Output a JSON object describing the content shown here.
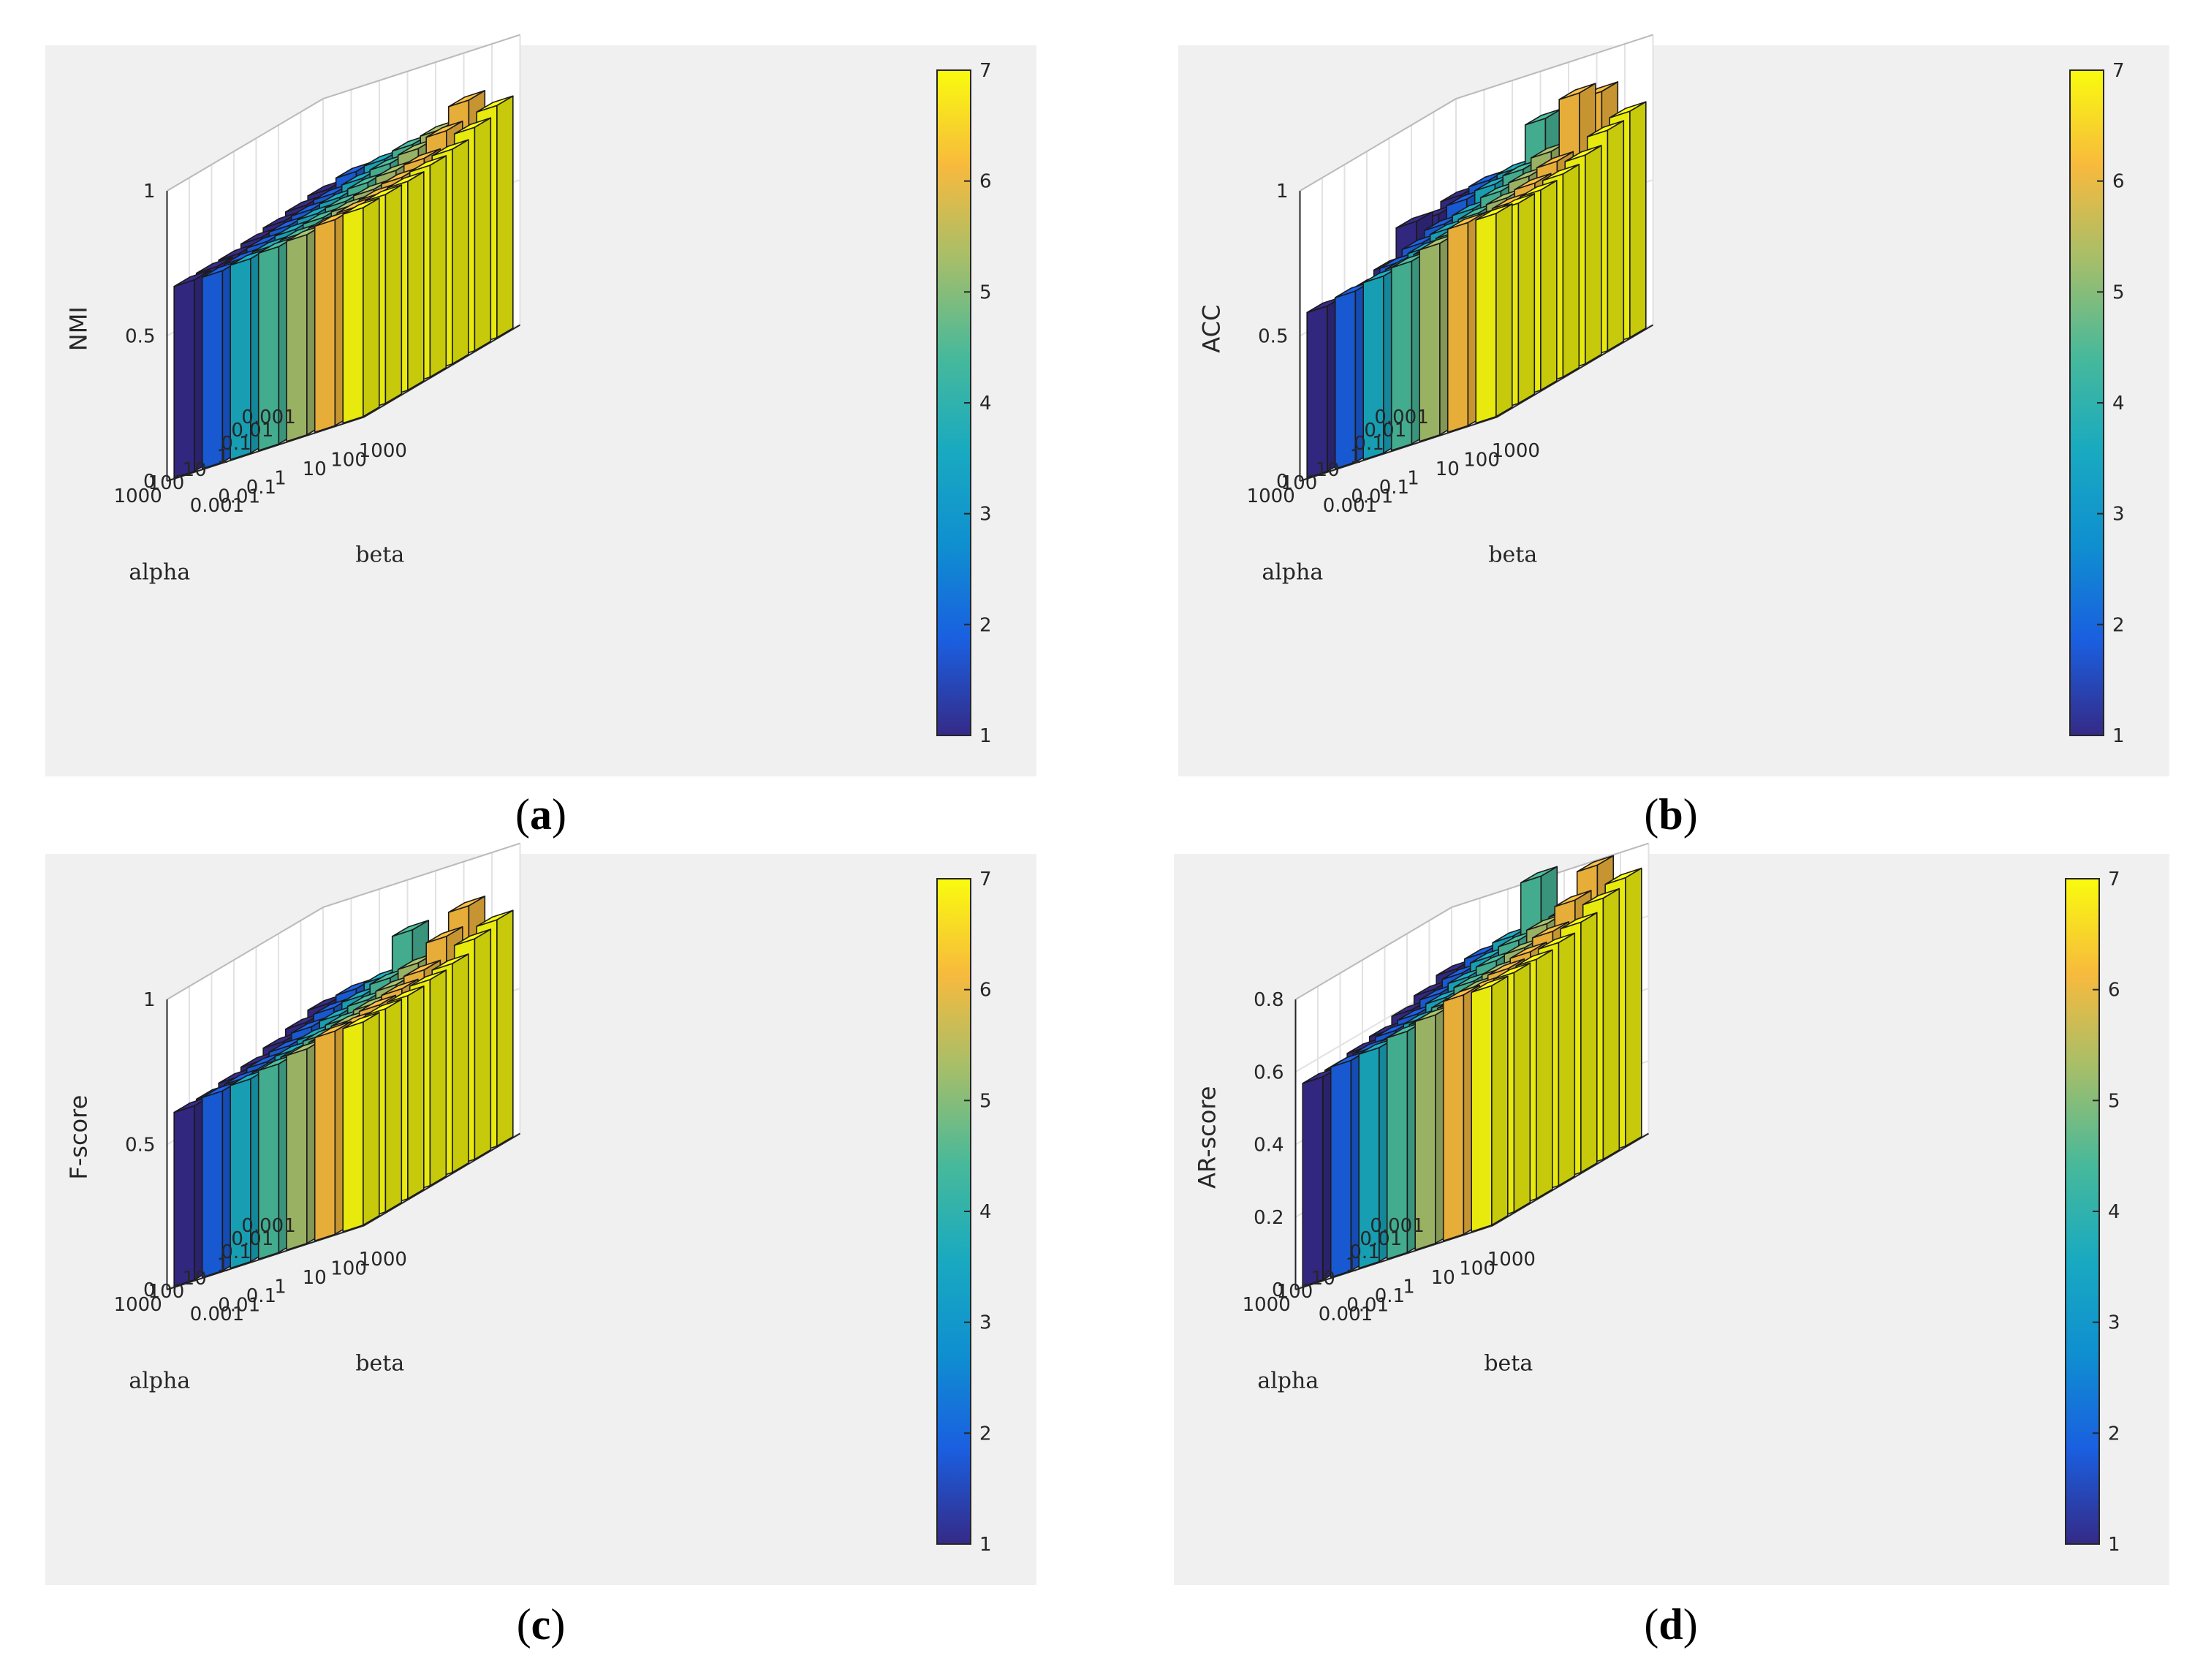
{
  "colormap": {
    "name": "parula",
    "stops": [
      "#352a87",
      "#1a5fe0",
      "#0f8fd0",
      "#19aac0",
      "#48b99a",
      "#a5be6a",
      "#f8ba3d",
      "#f9fb0e"
    ]
  },
  "chart_data": [
    {
      "type": "bar3",
      "panel": "a",
      "caption": "a",
      "zlabel": "NMI",
      "xlabel": "alpha",
      "ylabel": "beta",
      "alpha_ticks": [
        "0.001",
        "0.01",
        "0.1",
        "1",
        "10",
        "100",
        "1000"
      ],
      "beta_ticks": [
        "0.001",
        "0.01",
        "0.1",
        "1",
        "10",
        "100",
        "1000"
      ],
      "zticks": [
        "0",
        "0.5",
        "1"
      ],
      "zlim": [
        0,
        1
      ],
      "colorbar": {
        "ticks": [
          "1",
          "2",
          "3",
          "4",
          "5",
          "6",
          "7"
        ],
        "range": [
          1,
          7
        ]
      },
      "values": [
        [
          0.7,
          0.73,
          0.74,
          0.76,
          0.78,
          0.85,
          0.8
        ],
        [
          0.69,
          0.7,
          0.72,
          0.74,
          0.76,
          0.79,
          0.77
        ],
        [
          0.68,
          0.69,
          0.7,
          0.72,
          0.73,
          0.74,
          0.74
        ],
        [
          0.67,
          0.68,
          0.69,
          0.7,
          0.71,
          0.72,
          0.73
        ],
        [
          0.66,
          0.67,
          0.68,
          0.69,
          0.7,
          0.71,
          0.72
        ],
        [
          0.66,
          0.66,
          0.67,
          0.68,
          0.69,
          0.71,
          0.72
        ],
        [
          0.66,
          0.66,
          0.67,
          0.68,
          0.69,
          0.71,
          0.72
        ]
      ]
    },
    {
      "type": "bar3",
      "panel": "b",
      "caption": "b",
      "zlabel": "ACC",
      "xlabel": "alpha",
      "ylabel": "beta",
      "alpha_ticks": [
        "0.001",
        "0.01",
        "0.1",
        "1",
        "10",
        "100",
        "1000"
      ],
      "beta_ticks": [
        "0.001",
        "0.01",
        "0.1",
        "1",
        "10",
        "100",
        "1000"
      ],
      "zticks": [
        "0",
        "0.5",
        "1"
      ],
      "zlim": [
        0,
        1
      ],
      "colorbar": {
        "ticks": [
          "1",
          "2",
          "3",
          "4",
          "5",
          "6",
          "7"
        ],
        "range": [
          1,
          7
        ]
      },
      "values": [
        [
          0.68,
          0.7,
          0.71,
          0.85,
          0.74,
          0.88,
          0.78
        ],
        [
          0.66,
          0.68,
          0.7,
          0.72,
          0.75,
          0.92,
          0.76
        ],
        [
          0.68,
          0.64,
          0.66,
          0.69,
          0.71,
          0.73,
          0.72
        ],
        [
          0.58,
          0.62,
          0.64,
          0.66,
          0.68,
          0.7,
          0.7
        ],
        [
          0.56,
          0.6,
          0.62,
          0.64,
          0.66,
          0.68,
          0.69
        ],
        [
          0.56,
          0.58,
          0.61,
          0.63,
          0.65,
          0.68,
          0.69
        ],
        [
          0.57,
          0.59,
          0.61,
          0.63,
          0.66,
          0.7,
          0.7
        ]
      ]
    },
    {
      "type": "bar3",
      "panel": "c",
      "caption": "c",
      "zlabel": "F-score",
      "xlabel": "alpha",
      "ylabel": "beta",
      "alpha_ticks": [
        "0.001",
        "0.01",
        "0.1",
        "1",
        "10",
        "100",
        "1000"
      ],
      "beta_ticks": [
        "0.001",
        "0.01",
        "0.1",
        "1",
        "10",
        "100",
        "1000"
      ],
      "zticks": [
        "0",
        "0.5",
        "1"
      ],
      "zlim": [
        0,
        1
      ],
      "colorbar": {
        "ticks": [
          "1",
          "2",
          "3",
          "4",
          "5",
          "6",
          "7"
        ],
        "range": [
          1,
          7
        ]
      },
      "values": [
        [
          0.68,
          0.7,
          0.71,
          0.84,
          0.73,
          0.86,
          0.78
        ],
        [
          0.66,
          0.68,
          0.69,
          0.72,
          0.74,
          0.8,
          0.76
        ],
        [
          0.64,
          0.66,
          0.67,
          0.69,
          0.71,
          0.73,
          0.72
        ],
        [
          0.62,
          0.64,
          0.65,
          0.67,
          0.69,
          0.71,
          0.71
        ],
        [
          0.61,
          0.63,
          0.64,
          0.66,
          0.68,
          0.7,
          0.7
        ],
        [
          0.6,
          0.62,
          0.63,
          0.65,
          0.67,
          0.69,
          0.7
        ],
        [
          0.6,
          0.62,
          0.63,
          0.65,
          0.67,
          0.7,
          0.7
        ]
      ]
    },
    {
      "type": "bar3",
      "panel": "d",
      "caption": "d",
      "zlabel": "AR-score",
      "xlabel": "alpha",
      "ylabel": "beta",
      "alpha_ticks": [
        "0.001",
        "0.01",
        "0.1",
        "1",
        "10",
        "100",
        "1000"
      ],
      "beta_ticks": [
        "0.001",
        "0.01",
        "0.1",
        "1",
        "10",
        "100",
        "1000"
      ],
      "zticks": [
        "0",
        "0.2",
        "0.4",
        "0.6",
        "0.8"
      ],
      "zlim": [
        0,
        0.8
      ],
      "colorbar": {
        "ticks": [
          "1",
          "2",
          "3",
          "4",
          "5",
          "6",
          "7"
        ],
        "range": [
          1,
          7
        ]
      },
      "values": [
        [
          0.64,
          0.66,
          0.68,
          0.82,
          0.7,
          0.8,
          0.74
        ],
        [
          0.62,
          0.64,
          0.66,
          0.68,
          0.7,
          0.74,
          0.72
        ],
        [
          0.6,
          0.62,
          0.64,
          0.66,
          0.67,
          0.69,
          0.69
        ],
        [
          0.58,
          0.6,
          0.62,
          0.64,
          0.65,
          0.67,
          0.67
        ],
        [
          0.57,
          0.59,
          0.6,
          0.62,
          0.64,
          0.66,
          0.66
        ],
        [
          0.56,
          0.58,
          0.59,
          0.61,
          0.63,
          0.65,
          0.66
        ],
        [
          0.56,
          0.58,
          0.59,
          0.61,
          0.63,
          0.66,
          0.66
        ]
      ]
    }
  ]
}
